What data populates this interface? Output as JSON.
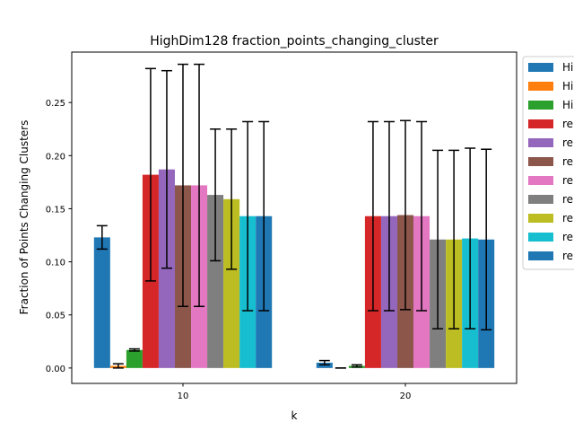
{
  "chart_data": {
    "type": "bar",
    "title": "HighDim128 fraction_points_changing_cluster",
    "xlabel": "k",
    "ylabel": "Fraction of Points Changing Clusters",
    "categories": [
      "10",
      "20"
    ],
    "ylim": [
      -0.0145,
      0.2975
    ],
    "yticks": [
      "0.00",
      "0.05",
      "0.10",
      "0.15",
      "0.20",
      "0.25"
    ],
    "legend_position": "outside-right",
    "grid": false,
    "series": [
      {
        "name": "Hi",
        "color": "#1f77b4",
        "values": [
          0.123,
          0.005
        ],
        "errors": [
          0.011,
          0.002
        ]
      },
      {
        "name": "Hi",
        "color": "#ff7f0e",
        "values": [
          0.002,
          0.0
        ],
        "errors": [
          0.002,
          0.0
        ]
      },
      {
        "name": "Hi",
        "color": "#2ca02c",
        "values": [
          0.017,
          0.002
        ],
        "errors": [
          0.001,
          0.001
        ]
      },
      {
        "name": "re",
        "color": "#d62728",
        "values": [
          0.182,
          0.143
        ],
        "errors": [
          0.1,
          0.089
        ]
      },
      {
        "name": "re",
        "color": "#9467bd",
        "values": [
          0.187,
          0.143
        ],
        "errors": [
          0.093,
          0.089
        ]
      },
      {
        "name": "re",
        "color": "#8c564b",
        "values": [
          0.172,
          0.144
        ],
        "errors": [
          0.114,
          0.089
        ]
      },
      {
        "name": "re",
        "color": "#e377c2",
        "values": [
          0.172,
          0.143
        ],
        "errors": [
          0.114,
          0.089
        ]
      },
      {
        "name": "re",
        "color": "#7f7f7f",
        "values": [
          0.163,
          0.121
        ],
        "errors": [
          0.062,
          0.084
        ]
      },
      {
        "name": "re",
        "color": "#bcbd22",
        "values": [
          0.159,
          0.121
        ],
        "errors": [
          0.066,
          0.084
        ]
      },
      {
        "name": "re",
        "color": "#17becf",
        "values": [
          0.143,
          0.122
        ],
        "errors": [
          0.089,
          0.085
        ]
      },
      {
        "name": "re",
        "color": "#1f77b4",
        "values": [
          0.143,
          0.121
        ],
        "errors": [
          0.089,
          0.085
        ]
      }
    ]
  }
}
